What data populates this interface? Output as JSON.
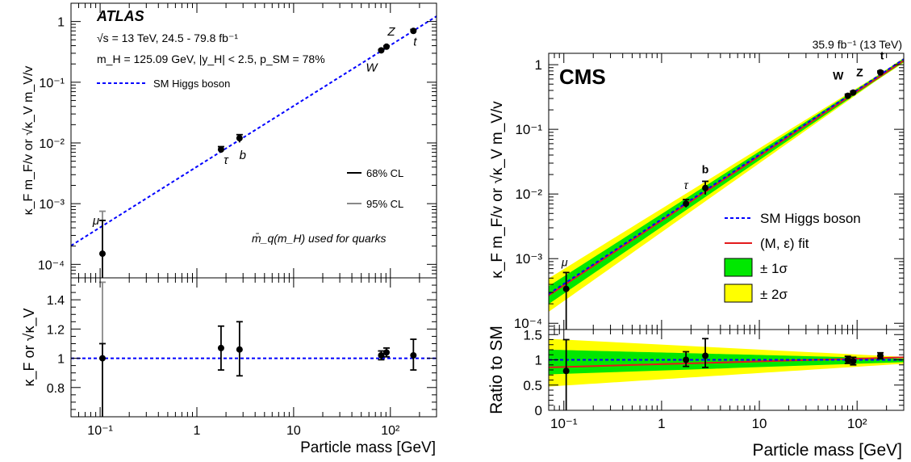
{
  "chart_data": [
    {
      "type": "scatter",
      "experiment": "ATLAS",
      "x_scale": "log",
      "y_scale": "log",
      "xlabel": "Particle mass [GeV]",
      "ylabel": "κ_F m_F/v or √κ_V m_V/v",
      "ratio_ylabel": "κ_F or √κ_V",
      "info_lines": [
        "√s = 13 TeV, 24.5 - 79.8 fb⁻¹",
        "m_H = 125.09 GeV, |y_H| < 2.5, p_SM = 78%"
      ],
      "legend": [
        "SM Higgs boson",
        "68% CL",
        "95% CL"
      ],
      "note": "m̄_q(m_H) used for quarks",
      "x_ticks": [
        "10⁻¹",
        "1",
        "10",
        "10²"
      ],
      "y_ticks": [
        "10⁻⁴",
        "10⁻³",
        "10⁻²",
        "10⁻¹",
        "1"
      ],
      "ratio_ticks": [
        "0.8",
        "1",
        "1.2",
        "1.4"
      ],
      "xlim": [
        0.05,
        300
      ],
      "ylim": [
        6e-05,
        2
      ],
      "ratio_ylim": [
        0.6,
        1.55
      ],
      "points": [
        {
          "label": "μ",
          "mass": 0.1057,
          "value": 0.00015,
          "lo68": 1e-05,
          "hi68": 0.00053,
          "hi95": 0.00075,
          "ratio": 1.0,
          "rlo68": 0.6,
          "rhi68": 1.1,
          "rhi95": 1.52
        },
        {
          "label": "τ",
          "mass": 1.777,
          "value": 0.0078,
          "lo68": 0.0069,
          "hi68": 0.0087,
          "ratio": 1.07,
          "rlo68": 0.92,
          "rhi68": 1.22
        },
        {
          "label": "b",
          "mass": 2.76,
          "value": 0.012,
          "lo68": 0.0102,
          "hi68": 0.0137,
          "ratio": 1.06,
          "rlo68": 0.88,
          "rhi68": 1.25
        },
        {
          "label": "W",
          "mass": 80.4,
          "value": 0.335,
          "lo68": 0.325,
          "hi68": 0.345,
          "ratio": 1.02,
          "rlo68": 0.99,
          "rhi68": 1.05
        },
        {
          "label": "Z",
          "mass": 91.19,
          "value": 0.385,
          "lo68": 0.372,
          "hi68": 0.398,
          "ratio": 1.04,
          "rlo68": 1.01,
          "rhi68": 1.07
        },
        {
          "label": "t",
          "mass": 173,
          "value": 0.7,
          "lo68": 0.66,
          "hi68": 0.74,
          "ratio": 1.02,
          "rlo68": 0.92,
          "rhi68": 1.13
        }
      ]
    },
    {
      "type": "scatter",
      "experiment": "CMS",
      "lumi": "35.9 fb⁻¹ (13 TeV)",
      "x_scale": "log",
      "y_scale": "log",
      "xlabel": "Particle mass [GeV]",
      "ylabel": "κ_F m_F/v or √κ_V m_V/v",
      "ratio_ylabel": "Ratio to SM",
      "legend": [
        "SM Higgs boson",
        "(M, ε) fit",
        "± 1σ",
        "± 2σ"
      ],
      "colors": {
        "sm": "#0000ff",
        "fit": "#e31a1c",
        "band1": "#00e800",
        "band2": "#ffff00"
      },
      "x_ticks": [
        "10⁻¹",
        "1",
        "10",
        "10²"
      ],
      "y_ticks": [
        "10⁻⁴",
        "10⁻³",
        "10⁻²",
        "10⁻¹",
        "1"
      ],
      "ratio_ticks": [
        "0",
        "0.5",
        "1",
        "1.5"
      ],
      "xlim": [
        0.07,
        300
      ],
      "ylim": [
        8e-05,
        1.5
      ],
      "ratio_ylim": [
        0,
        1.6
      ],
      "points": [
        {
          "label": "μ",
          "mass": 0.1057,
          "value": 0.00034,
          "lo68": 8e-05,
          "hi68": 0.00061,
          "ratio": 0.78,
          "rlo68": 0.0,
          "rhi68": 1.4
        },
        {
          "label": "τ",
          "mass": 1.777,
          "value": 0.0071,
          "lo68": 0.0062,
          "hi68": 0.0082,
          "ratio": 1.0,
          "rlo68": 0.87,
          "rhi68": 1.16
        },
        {
          "label": "b",
          "mass": 2.8,
          "value": 0.0124,
          "lo68": 0.0098,
          "hi68": 0.0157,
          "ratio": 1.08,
          "rlo68": 0.85,
          "rhi68": 1.42
        },
        {
          "label": "W",
          "mass": 80.4,
          "value": 0.33,
          "lo68": 0.31,
          "hi68": 0.35,
          "ratio": 1.0,
          "rlo68": 0.93,
          "rhi68": 1.07
        },
        {
          "label": "Z",
          "mass": 91.19,
          "value": 0.37,
          "lo68": 0.35,
          "hi68": 0.39,
          "ratio": 0.97,
          "rlo68": 0.9,
          "rhi68": 1.05
        },
        {
          "label": "t",
          "mass": 173,
          "value": 0.76,
          "lo68": 0.72,
          "hi68": 0.8,
          "ratio": 1.08,
          "rlo68": 1.02,
          "rhi68": 1.14
        }
      ]
    }
  ]
}
